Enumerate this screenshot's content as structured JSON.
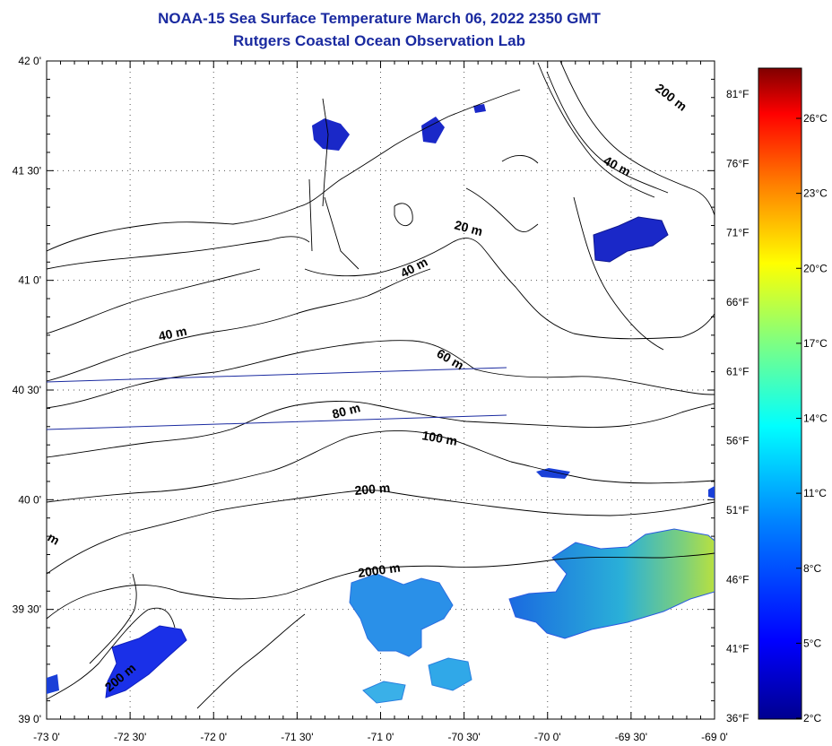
{
  "title": {
    "line1": "NOAA-15 Sea Surface Temperature March 06, 2022 2350 GMT",
    "line2": "Rutgers Coastal Ocean Observation Lab"
  },
  "axes": {
    "lon_ticks": [
      "-73 0'",
      "-72 30'",
      "-72 0'",
      "-71 30'",
      "-71 0'",
      "-70 30'",
      "-70 0'",
      "-69 30'",
      "-69 0'"
    ],
    "lat_ticks": [
      "42 0'",
      "41 30'",
      "41 0'",
      "40 30'",
      "40 0'",
      "39 30'",
      "39 0'"
    ],
    "fahrenheit_ticks": [
      "81°F",
      "76°F",
      "71°F",
      "66°F",
      "61°F",
      "56°F",
      "51°F",
      "46°F",
      "41°F",
      "36°F"
    ],
    "celsius_ticks": [
      "26°C",
      "23°C",
      "20°C",
      "17°C",
      "14°C",
      "11°C",
      "8°C",
      "5°C",
      "2°C"
    ]
  },
  "depth_labels": [
    "200 m",
    "40 m",
    "20 m",
    "40 m",
    "40 m",
    "60 m",
    "80 m",
    "100 m",
    "200 m",
    "2000 m",
    "200 m",
    "m"
  ],
  "colorbar": {
    "min_c": 2,
    "max_c": 28,
    "stops": [
      "#00008f",
      "#0000ff",
      "#0080ff",
      "#00ffff",
      "#80ff80",
      "#ffff00",
      "#ff8000",
      "#ff0000",
      "#800000"
    ]
  },
  "colors": {
    "title": "#1a2aa0",
    "coast": "#000000",
    "track": "#1a2aa0",
    "cold_patch": "#1a2ad0"
  }
}
